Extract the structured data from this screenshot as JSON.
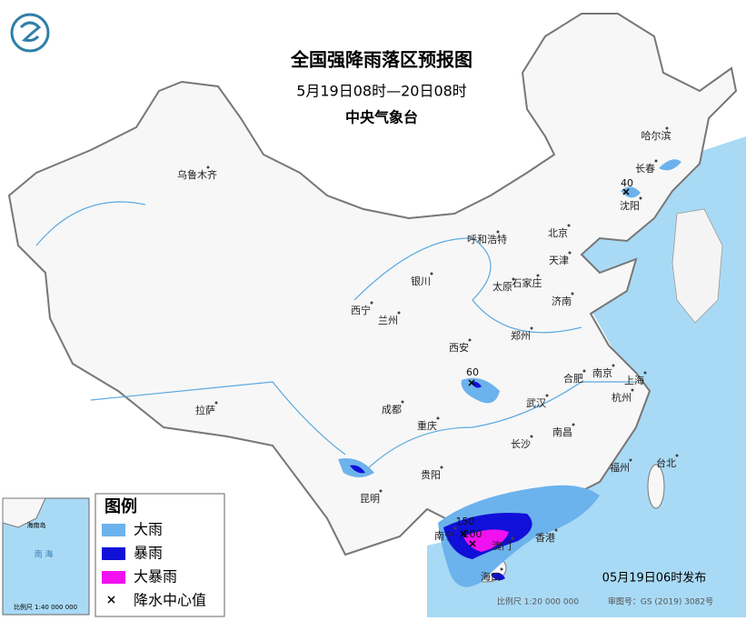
{
  "header": {
    "title": "全国强降雨落区预报图",
    "period": "5月19日08时—20日08时",
    "agency": "中央气象台"
  },
  "cities": [
    {
      "label": "乌鲁木齐"
    },
    {
      "label": "哈尔滨"
    },
    {
      "label": "长春"
    },
    {
      "label": "沈阳"
    },
    {
      "label": "呼和浩特"
    },
    {
      "label": "北京"
    },
    {
      "label": "天津"
    },
    {
      "label": "银川"
    },
    {
      "label": "太原"
    },
    {
      "label": "石家庄"
    },
    {
      "label": "济南"
    },
    {
      "label": "西宁"
    },
    {
      "label": "兰州"
    },
    {
      "label": "郑州"
    },
    {
      "label": "西安"
    },
    {
      "label": "合肥"
    },
    {
      "label": "南京"
    },
    {
      "label": "上海"
    },
    {
      "label": "拉萨"
    },
    {
      "label": "成都"
    },
    {
      "label": "武汉"
    },
    {
      "label": "杭州"
    },
    {
      "label": "重庆"
    },
    {
      "label": "南昌"
    },
    {
      "label": "长沙"
    },
    {
      "label": "贵阳"
    },
    {
      "label": "福州"
    },
    {
      "label": "台北"
    },
    {
      "label": "昆明"
    },
    {
      "label": "南宁"
    },
    {
      "label": "澳门"
    },
    {
      "label": "香港"
    },
    {
      "label": "海口"
    }
  ],
  "rain_centers": [
    {
      "label": "40"
    },
    {
      "label": "60"
    },
    {
      "label": "150"
    },
    {
      "label": "200"
    }
  ],
  "legend": {
    "title": "图例",
    "items": [
      {
        "label": "大雨",
        "color": "#6cb2ec"
      },
      {
        "label": "暴雨",
        "color": "#1010d8"
      },
      {
        "label": "大暴雨",
        "color": "#f010f0"
      },
      {
        "label": "降水中心值"
      }
    ]
  },
  "footer": {
    "issued": "05月19日06时发布",
    "scale": "比例尺 1:20 000 000",
    "map_number": "审图号：GS (2019) 3082号"
  },
  "inset": {
    "sea": "南 海",
    "island": "海南岛",
    "scale": "比例尺 1:40 000 000"
  }
}
